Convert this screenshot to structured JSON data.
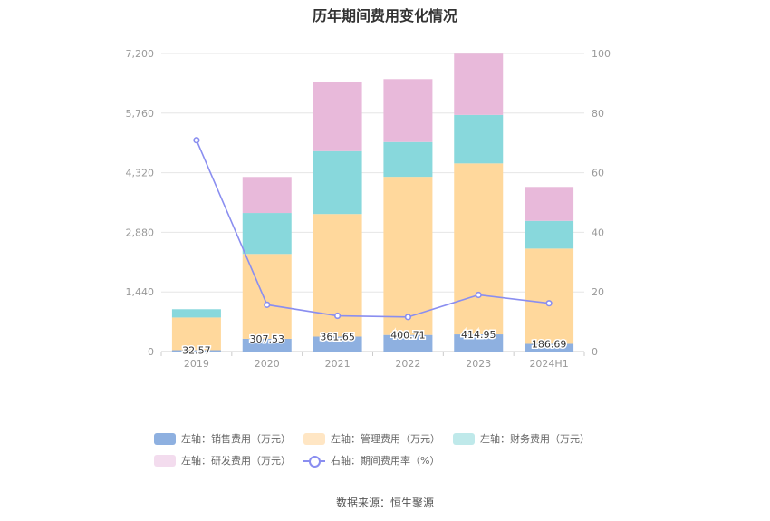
{
  "chart_data": {
    "type": "bar",
    "title": "历年期间费用变化情况",
    "categories": [
      "2019",
      "2020",
      "2021",
      "2022",
      "2023",
      "2024H1"
    ],
    "left_ylim": [
      0,
      7200
    ],
    "left_ticks": [
      "0",
      "1,440",
      "2,880",
      "4,320",
      "5,760",
      "7,200"
    ],
    "right_ylim": [
      0,
      100
    ],
    "right_ticks": [
      "0",
      "20",
      "40",
      "60",
      "80",
      "100"
    ],
    "series": [
      {
        "name": "左轴：销售费用（万元）",
        "color": "#8eb0e0",
        "values": [
          32.57,
          307.53,
          361.65,
          400.71,
          414.95,
          186.69
        ],
        "labels": [
          "32.57",
          "307.53",
          "361.65",
          "400.71",
          "414.95",
          "186.69"
        ]
      },
      {
        "name": "左轴：管理费用（万元）",
        "color": "#ffd89c",
        "values": [
          790,
          2050,
          2960,
          3820,
          4130,
          2300
        ]
      },
      {
        "name": "左轴：财务费用（万元）",
        "color": "#88d8dc",
        "values": [
          200,
          990,
          1520,
          840,
          1170,
          670
        ]
      },
      {
        "name": "左轴：研发费用（万元）",
        "color": "#e8b9da",
        "values": [
          0,
          870,
          1670,
          1520,
          1480,
          820
        ]
      }
    ],
    "line_series": {
      "name": "右轴：期间费用率（%）",
      "color": "#8a8ef0",
      "values": [
        70.9,
        15.7,
        12.0,
        11.6,
        19.0,
        16.2
      ]
    }
  },
  "source_text": "数据来源：恒生聚源"
}
